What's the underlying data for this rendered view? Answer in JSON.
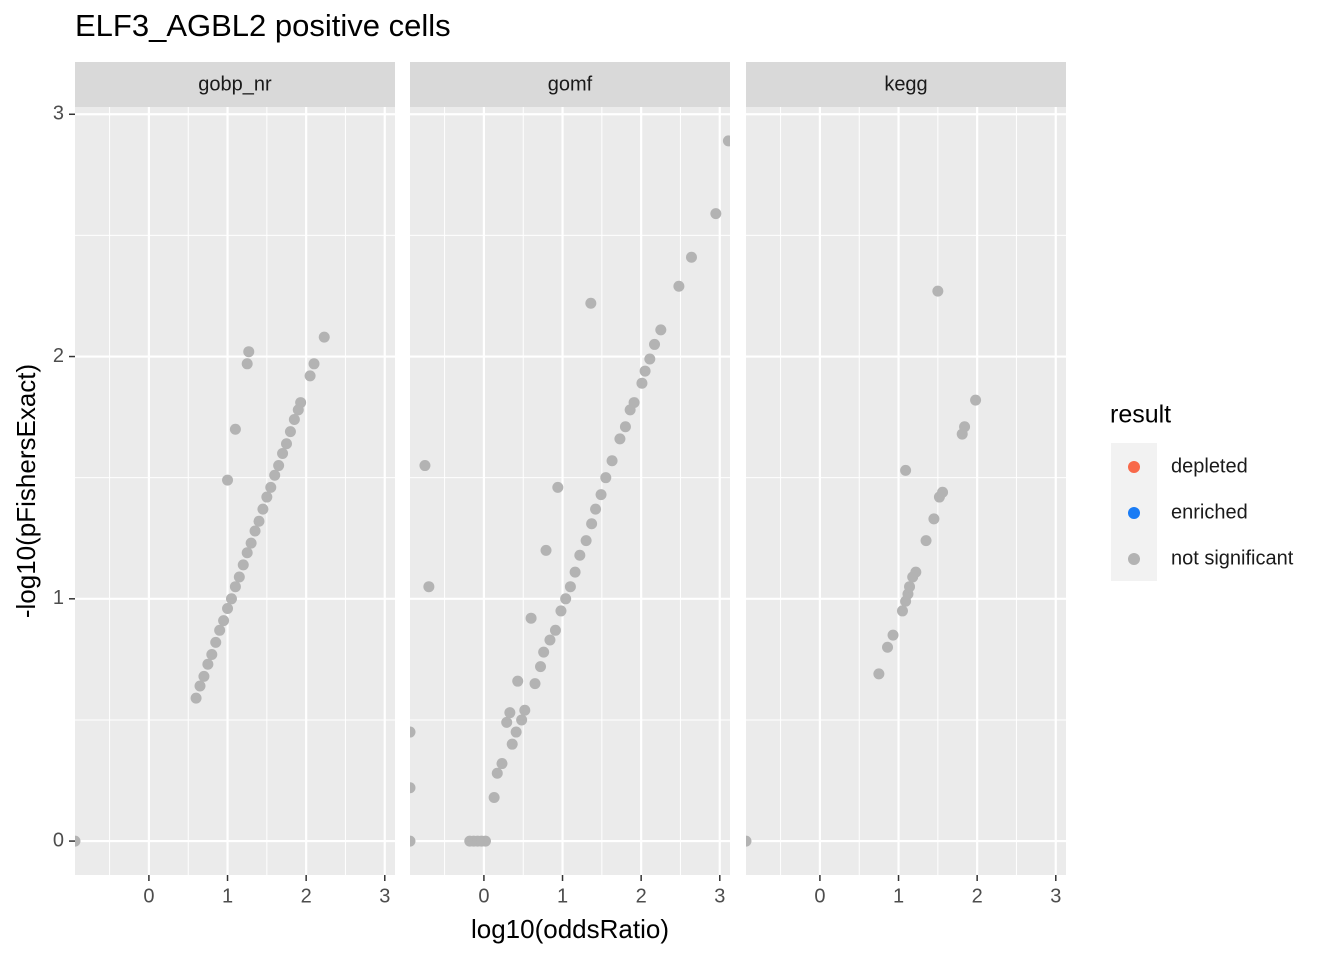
{
  "chart_data": [
    {
      "type": "scatter",
      "title": "ELF3_AGBL2 positive cells",
      "x_label": "log10(oddsRatio)",
      "y_label": "-log10(pFishersExact)",
      "legend": {
        "title": "result",
        "entries": [
          {
            "name": "depleted",
            "color": "#f8694a"
          },
          {
            "name": "enriched",
            "color": "#1a7cf5"
          },
          {
            "name": "not significant",
            "color": "#b3b3b3"
          }
        ]
      },
      "panel": "gobp_nr",
      "color": "#b3b3b3",
      "xlim": [
        -0.94,
        3.13
      ],
      "ylim": [
        -0.14,
        3.03
      ],
      "xticks": [
        0,
        1,
        2,
        3
      ],
      "yticks": [
        0,
        1,
        2,
        3
      ],
      "grid": true,
      "x": [
        -0.94,
        0.6,
        0.65,
        0.7,
        0.75,
        0.8,
        0.85,
        0.9,
        0.95,
        1.0,
        1.05,
        1.1,
        1.15,
        1.2,
        1.25,
        1.3,
        1.35,
        1.4,
        1.45,
        1.5,
        1.55,
        1.6,
        1.65,
        1.7,
        1.75,
        1.8,
        1.85,
        1.9,
        1.93,
        1.0,
        1.1,
        1.25,
        1.27,
        2.05,
        2.1,
        2.23
      ],
      "values": [
        0,
        0.59,
        0.64,
        0.68,
        0.73,
        0.77,
        0.82,
        0.87,
        0.91,
        0.96,
        1.0,
        1.05,
        1.09,
        1.14,
        1.19,
        1.23,
        1.28,
        1.32,
        1.37,
        1.42,
        1.46,
        1.51,
        1.55,
        1.6,
        1.64,
        1.69,
        1.74,
        1.78,
        1.81,
        1.49,
        1.7,
        1.97,
        2.02,
        1.92,
        1.97,
        2.08
      ]
    },
    {
      "type": "scatter",
      "panel": "gomf",
      "color": "#b3b3b3",
      "xlim": [
        -0.94,
        3.13
      ],
      "ylim": [
        -0.14,
        3.03
      ],
      "xticks": [
        0,
        1,
        2,
        3
      ],
      "yticks": [
        0,
        1,
        2,
        3
      ],
      "grid": true,
      "x": [
        -0.94,
        -0.94,
        -0.94,
        -0.75,
        -0.7,
        -0.18,
        -0.13,
        -0.08,
        -0.03,
        0.02,
        0.13,
        0.17,
        0.23,
        0.29,
        0.33,
        0.36,
        0.41,
        0.43,
        0.48,
        0.52,
        0.6,
        0.65,
        0.72,
        0.76,
        0.79,
        0.84,
        0.91,
        0.94,
        0.98,
        1.04,
        1.1,
        1.16,
        1.22,
        1.3,
        1.36,
        1.37,
        1.42,
        1.49,
        1.55,
        1.63,
        1.73,
        1.8,
        1.86,
        1.91,
        2.01,
        2.05,
        2.11,
        2.17,
        2.25,
        2.48,
        2.64,
        2.95,
        3.11
      ],
      "values": [
        0,
        0.22,
        0.45,
        1.55,
        1.05,
        0,
        0,
        0,
        0,
        0,
        0.18,
        0.28,
        0.32,
        0.49,
        0.53,
        0.4,
        0.45,
        0.66,
        0.5,
        0.54,
        0.92,
        0.65,
        0.72,
        0.78,
        1.2,
        0.83,
        0.87,
        1.46,
        0.95,
        1.0,
        1.05,
        1.11,
        1.18,
        1.24,
        2.22,
        1.31,
        1.37,
        1.43,
        1.5,
        1.57,
        1.66,
        1.71,
        1.78,
        1.81,
        1.89,
        1.94,
        1.99,
        2.05,
        2.11,
        2.29,
        2.41,
        2.59,
        2.89
      ]
    },
    {
      "type": "scatter",
      "panel": "kegg",
      "color": "#b3b3b3",
      "xlim": [
        -0.94,
        3.13
      ],
      "ylim": [
        -0.14,
        3.03
      ],
      "xticks": [
        0,
        1,
        2,
        3
      ],
      "yticks": [
        0,
        1,
        2,
        3
      ],
      "grid": true,
      "x": [
        -0.94,
        0.75,
        0.86,
        0.93,
        1.05,
        1.09,
        1.12,
        1.14,
        1.18,
        1.22,
        1.09,
        1.35,
        1.45,
        1.52,
        1.56,
        1.5,
        1.81,
        1.84,
        1.98
      ],
      "values": [
        0,
        0.69,
        0.8,
        0.85,
        0.95,
        0.99,
        1.02,
        1.05,
        1.09,
        1.11,
        1.53,
        1.24,
        1.33,
        1.42,
        1.44,
        2.27,
        1.68,
        1.71,
        1.82
      ]
    }
  ]
}
